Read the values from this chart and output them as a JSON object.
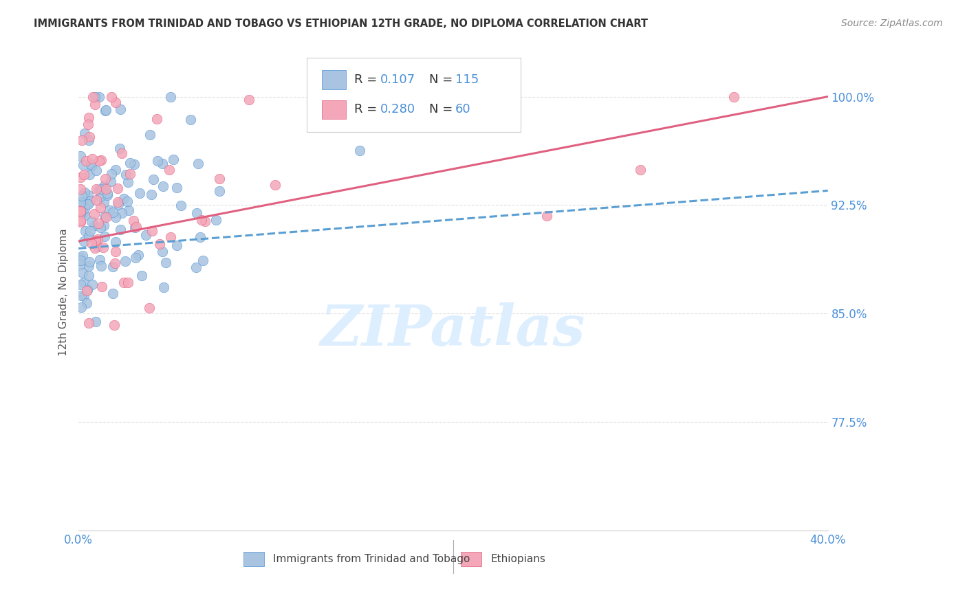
{
  "title": "IMMIGRANTS FROM TRINIDAD AND TOBAGO VS ETHIOPIAN 12TH GRADE, NO DIPLOMA CORRELATION CHART",
  "source": "Source: ZipAtlas.com",
  "ylabel": "12th Grade, No Diploma",
  "yticks": [
    0.775,
    0.85,
    0.925,
    1.0
  ],
  "ytick_labels": [
    "77.5%",
    "85.0%",
    "92.5%",
    "100.0%"
  ],
  "xlim": [
    0.0,
    0.4
  ],
  "ylim": [
    0.7,
    1.03
  ],
  "blue_R": 0.107,
  "blue_N": 115,
  "pink_R": 0.28,
  "pink_N": 60,
  "blue_color": "#a8c4e0",
  "blue_dark": "#4a90d9",
  "pink_color": "#f4a7b9",
  "pink_dark": "#e05a7a",
  "trend_blue": "#5a9fd4",
  "trend_pink": "#e06080",
  "background": "#ffffff",
  "grid_color": "#cccccc",
  "title_color": "#333333",
  "source_color": "#888888",
  "axis_label_color": "#4a90d9",
  "watermark_color": "#ddeeff"
}
